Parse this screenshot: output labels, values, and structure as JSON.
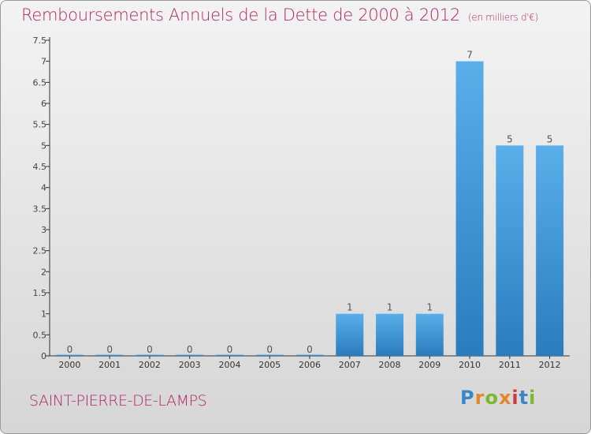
{
  "title": "Remboursements Annuels de la Dette de 2000 à 2012",
  "unit_note": "(en milliers d'€)",
  "commune": "SAINT-PIERRE-DE-LAMPS",
  "logo": {
    "text": "Proxiti",
    "colors": [
      "#3a86c8",
      "#e2862a",
      "#7ab82e",
      "#e2862a",
      "#c93a3a",
      "#3a86c8",
      "#7ab82e"
    ]
  },
  "colors": {
    "title": "#b0285e",
    "bar_light": "#5aaeea",
    "bar_dark": "#2a7cbc",
    "axis": "#333333"
  },
  "chart_data": {
    "type": "bar",
    "title": "Remboursements Annuels de la Dette de 2000 à 2012",
    "ylabel": "",
    "xlabel": "",
    "ylim": [
      0,
      7.5
    ],
    "yticks": [
      "0",
      "0.5",
      "1",
      "1.5",
      "2",
      "2.5",
      "3",
      "3.5",
      "4",
      "4.5",
      "5",
      "5.5",
      "6",
      "6.5",
      "7",
      "7.5"
    ],
    "categories": [
      "2000",
      "2001",
      "2002",
      "2003",
      "2004",
      "2005",
      "2006",
      "2007",
      "2008",
      "2009",
      "2010",
      "2011",
      "2012"
    ],
    "values": [
      0,
      0,
      0,
      0,
      0,
      0,
      0,
      1,
      1,
      1,
      7,
      5,
      5
    ],
    "data_labels": [
      "0",
      "0",
      "0",
      "0",
      "0",
      "0",
      "0",
      "1",
      "1",
      "1",
      "7",
      "5",
      "5"
    ],
    "grid": false,
    "legend": "none"
  }
}
